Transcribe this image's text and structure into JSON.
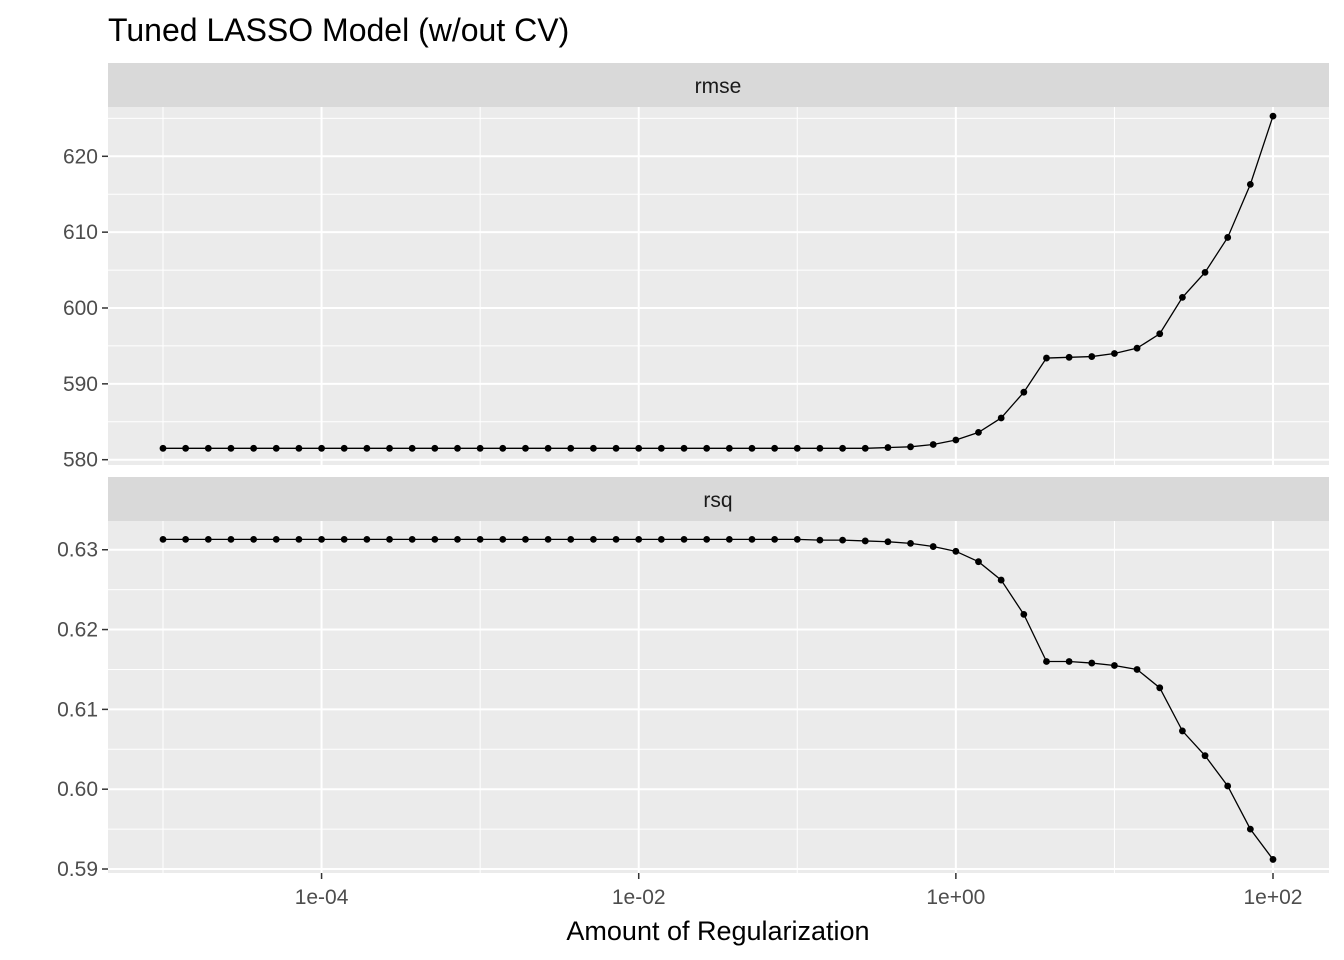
{
  "chart_data": {
    "type": "line",
    "title": "Tuned LASSO Model (w/out CV)",
    "xlabel": "Amount of Regularization",
    "x_scale": "log10",
    "x_tick_labels": [
      "1e-04",
      "1e-02",
      "1e+00",
      "1e+02"
    ],
    "x_tick_values": [
      0.0001,
      0.01,
      1,
      100
    ],
    "xlim": [
      1e-05,
      100
    ],
    "x": [
      1e-05,
      1.389e-05,
      1.931e-05,
      2.683e-05,
      3.728e-05,
      5.179e-05,
      7.197e-05,
      0.0001,
      0.0001389,
      0.0001931,
      0.0002683,
      0.0003728,
      0.0005179,
      0.0007197,
      0.001,
      0.001389,
      0.001931,
      0.002683,
      0.003728,
      0.005179,
      0.007197,
      0.01,
      0.01389,
      0.01931,
      0.02683,
      0.03728,
      0.05179,
      0.07197,
      0.1,
      0.1389,
      0.1931,
      0.2683,
      0.3728,
      0.5179,
      0.7197,
      1.0,
      1.389,
      1.931,
      2.683,
      3.728,
      5.179,
      7.197,
      10.0,
      13.89,
      19.31,
      26.83,
      37.28,
      51.79,
      71.97,
      100.0
    ],
    "facets": [
      {
        "strip": "rmse",
        "y_tick_labels": [
          "580",
          "590",
          "600",
          "610",
          "620"
        ],
        "ylim": [
          579.3,
          626.5
        ],
        "y": [
          581.5,
          581.5,
          581.5,
          581.5,
          581.5,
          581.5,
          581.5,
          581.5,
          581.5,
          581.5,
          581.5,
          581.5,
          581.5,
          581.5,
          581.5,
          581.5,
          581.5,
          581.5,
          581.5,
          581.5,
          581.5,
          581.5,
          581.5,
          581.5,
          581.5,
          581.5,
          581.5,
          581.5,
          581.5,
          581.5,
          581.5,
          581.5,
          581.6,
          581.7,
          582.0,
          582.6,
          583.6,
          585.5,
          588.9,
          593.4,
          593.5,
          593.6,
          594.0,
          594.7,
          596.6,
          601.4,
          604.7,
          609.3,
          616.3,
          625.3
        ]
      },
      {
        "strip": "rsq",
        "y_tick_labels": [
          "0.59",
          "0.60",
          "0.61",
          "0.62",
          "0.63"
        ],
        "ylim": [
          0.5895,
          0.6336
        ],
        "y": [
          0.6313,
          0.6313,
          0.6313,
          0.6313,
          0.6313,
          0.6313,
          0.6313,
          0.6313,
          0.6313,
          0.6313,
          0.6313,
          0.6313,
          0.6313,
          0.6313,
          0.6313,
          0.6313,
          0.6313,
          0.6313,
          0.6313,
          0.6313,
          0.6313,
          0.6313,
          0.6313,
          0.6313,
          0.6313,
          0.6313,
          0.6313,
          0.6313,
          0.6313,
          0.6312,
          0.6312,
          0.6311,
          0.631,
          0.6308,
          0.6304,
          0.6298,
          0.6285,
          0.6262,
          0.6219,
          0.616,
          0.616,
          0.6158,
          0.6155,
          0.615,
          0.6127,
          0.6073,
          0.6042,
          0.6004,
          0.595,
          0.5912
        ]
      }
    ],
    "grid": true,
    "panel_background": "#EBEBEB",
    "strip_background": "#D9D9D9",
    "line_color": "#000000",
    "point_color": "#000000"
  }
}
